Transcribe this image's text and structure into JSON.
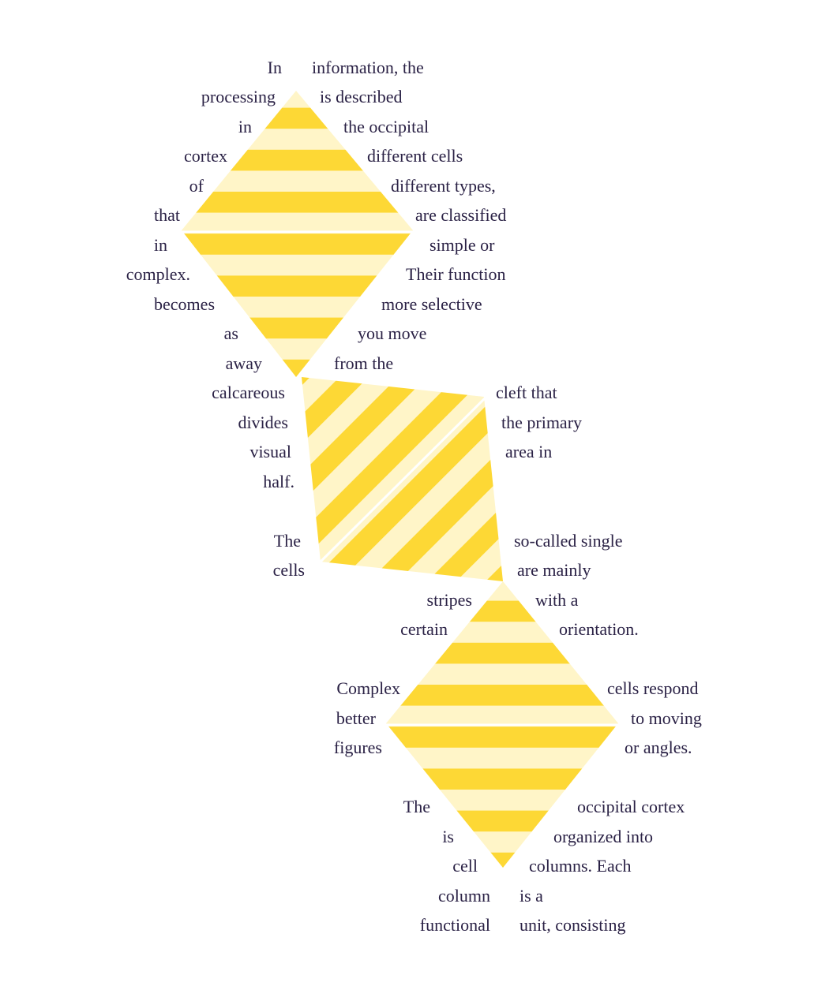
{
  "colors": {
    "stripe_dark": "#FDD835",
    "stripe_light": "#FFF5C8",
    "text": "#2a2145",
    "background": "#ffffff"
  },
  "lines": [
    {
      "left": "In",
      "right": "information, the"
    },
    {
      "left": "processing",
      "right": "is described"
    },
    {
      "left": "in",
      "right": "the occipital"
    },
    {
      "left": "cortex",
      "right": "different cells"
    },
    {
      "left": "of",
      "right": "different types,"
    },
    {
      "left": "that",
      "right": "are classified"
    },
    {
      "left": "in",
      "right": "simple or"
    },
    {
      "left": "complex.",
      "right": "Their function"
    },
    {
      "left": "becomes",
      "right": "more selective"
    },
    {
      "left": "as",
      "right": "you move"
    },
    {
      "left": "away",
      "right": "from the"
    },
    {
      "left": "calcareous",
      "right": "cleft that"
    },
    {
      "left": "divides",
      "right": "the primary"
    },
    {
      "left": "visual",
      "right": "area in"
    },
    {
      "left": "half.",
      "right": ""
    },
    {
      "left": "The",
      "right": "so-called single"
    },
    {
      "left": "cells",
      "right": "are mainly"
    },
    {
      "left": "stripes",
      "right": "with a"
    },
    {
      "left": "certain",
      "right": "orientation."
    },
    {
      "left": "Complex",
      "right": "cells respond"
    },
    {
      "left": "better",
      "right": "to moving"
    },
    {
      "left": "figures",
      "right": "or angles."
    },
    {
      "left": "The",
      "right": "occipital cortex"
    },
    {
      "left": "is",
      "right": "organized into"
    },
    {
      "left": "cell",
      "right": "columns. Each"
    },
    {
      "left": "column",
      "right": "is a"
    },
    {
      "left": "functional",
      "right": "unit, consisting"
    }
  ]
}
